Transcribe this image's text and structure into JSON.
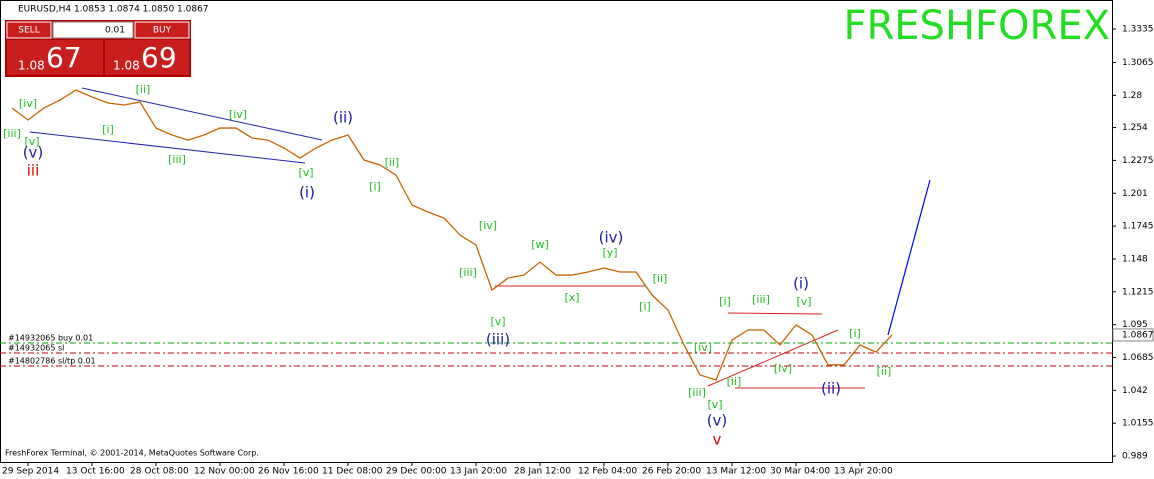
{
  "chart_data": {
    "type": "line",
    "header": "EURUSD,H4  1.0853 1.0874 1.0850 1.0867",
    "watermark": "FRESHFOREX",
    "footer": "FreshForex Terminal, © 2001-2014, MetaQuotes Software Corp.",
    "trade_panel": {
      "sell": "SELL",
      "buy": "BUY",
      "lot": "0.01",
      "bid_prefix": "1.08",
      "bid": "67",
      "ask_prefix": "1.08",
      "ask": "69"
    },
    "categories": [
      null,
      "29 Sep 2014",
      null,
      null,
      null,
      "13 Oct 16:00",
      null,
      null,
      null,
      "28 Oct 08:00",
      null,
      null,
      null,
      "12 Nov 00:00",
      null,
      null,
      null,
      "26 Nov 16:00",
      null,
      null,
      null,
      "11 Dec 08:00",
      null,
      null,
      null,
      "29 Dec 00:00",
      null,
      null,
      null,
      "13 Jan 20:00",
      null,
      null,
      null,
      "28 Jan 12:00",
      null,
      null,
      null,
      "12 Feb 04:00",
      null,
      null,
      null,
      "26 Feb 20:00",
      null,
      null,
      null,
      "13 Mar 12:00",
      null,
      null,
      null,
      "30 Mar 04:00",
      null,
      null,
      null,
      "13 Apr 20:00",
      null,
      null
    ],
    "series": [
      {
        "color": "#c86400",
        "values": [
          1.2698,
          1.2601,
          1.2698,
          1.2762,
          1.2843,
          1.2786,
          1.2738,
          1.2722,
          1.2746,
          1.2536,
          1.248,
          1.2439,
          1.248,
          1.2536,
          1.2536,
          1.2456,
          1.2439,
          1.2375,
          1.2294,
          1.2375,
          1.2439,
          1.248,
          1.2278,
          1.2238,
          1.2157,
          1.1915,
          1.1859,
          1.181,
          1.1673,
          1.1592,
          1.1229,
          1.1326,
          1.135,
          1.1455,
          1.135,
          1.135,
          1.1375,
          1.1407,
          1.1375,
          1.1375,
          1.1189,
          1.1068,
          1.0786,
          1.0544,
          1.0504,
          1.0826,
          1.0907,
          1.0907,
          1.0786,
          1.0948,
          1.0867,
          1.0625,
          1.0625,
          1.0786,
          1.0729,
          1.0867
        ]
      }
    ],
    "projection": {
      "color": "#0000ff",
      "values": [
        1.0867,
        1.2117
      ]
    },
    "current_price": 1.0867,
    "ylim": [
      0.9842,
      1.3569
    ],
    "yticks": [
      1.3335,
      1.3065,
      1.28,
      1.254,
      1.2275,
      1.201,
      1.1745,
      1.148,
      1.1215,
      1.095,
      1.0685,
      1.042,
      1.0155,
      0.989
    ],
    "order_lines": [
      {
        "label": "#14932065 buy 0.01",
        "value": 1.0802,
        "color": "#00a000"
      },
      {
        "label": "#14932065 sl",
        "value": 1.0721,
        "color": "#c00000"
      },
      {
        "label": "#14802786 sl/tp 0.01",
        "value": 1.0616,
        "color": "#c00000"
      }
    ],
    "annotations": [
      {
        "text": "[iv]",
        "color": "#22bb22"
      },
      {
        "text": "[iii]",
        "color": "#22bb22"
      },
      {
        "text": "[v]",
        "color": "#22bb22"
      },
      {
        "text": "[ii]",
        "color": "#22bb22"
      },
      {
        "text": "[i]",
        "color": "#22bb22"
      },
      {
        "text": "[iii]",
        "color": "#22bb22"
      },
      {
        "text": "[iv]",
        "color": "#22bb22"
      },
      {
        "text": "[v]",
        "color": "#22bb22"
      },
      {
        "text": "[ii]",
        "color": "#22bb22"
      },
      {
        "text": "[i]",
        "color": "#22bb22"
      },
      {
        "text": "[iv]",
        "color": "#22bb22"
      },
      {
        "text": "[iii]",
        "color": "#22bb22"
      },
      {
        "text": "[w]",
        "color": "#22bb22"
      },
      {
        "text": "[y]",
        "color": "#22bb22"
      },
      {
        "text": "[x]",
        "color": "#22bb22"
      },
      {
        "text": "[ii]",
        "color": "#22bb22"
      },
      {
        "text": "[i]",
        "color": "#22bb22"
      },
      {
        "text": "[v]",
        "color": "#22bb22"
      },
      {
        "text": "[i]",
        "color": "#22bb22"
      },
      {
        "text": "[iii]",
        "color": "#22bb22"
      },
      {
        "text": "[v]",
        "color": "#22bb22"
      },
      {
        "text": "[iv]",
        "color": "#22bb22"
      },
      {
        "text": "[iv]",
        "color": "#22bb22"
      },
      {
        "text": "[ii]",
        "color": "#22bb22"
      },
      {
        "text": "[iii]",
        "color": "#22bb22"
      },
      {
        "text": "[v]",
        "color": "#22bb22"
      },
      {
        "text": "[i]",
        "color": "#22bb22"
      },
      {
        "text": "[ii]",
        "color": "#22bb22"
      },
      {
        "text": "(v)",
        "color": "#1a1aa8"
      },
      {
        "text": "(ii)",
        "color": "#1a1aa8"
      },
      {
        "text": "(i)",
        "color": "#1a1aa8"
      },
      {
        "text": "(iv)",
        "color": "#1a1aa8"
      },
      {
        "text": "(iii)",
        "color": "#1a1aa8"
      },
      {
        "text": "(i)",
        "color": "#1a1aa8"
      },
      {
        "text": "(ii)",
        "color": "#1a1aa8"
      },
      {
        "text": "(v)",
        "color": "#1a1aa8"
      },
      {
        "text": "iii",
        "color": "#dd0000"
      },
      {
        "text": "v",
        "color": "#dd0000"
      }
    ]
  }
}
